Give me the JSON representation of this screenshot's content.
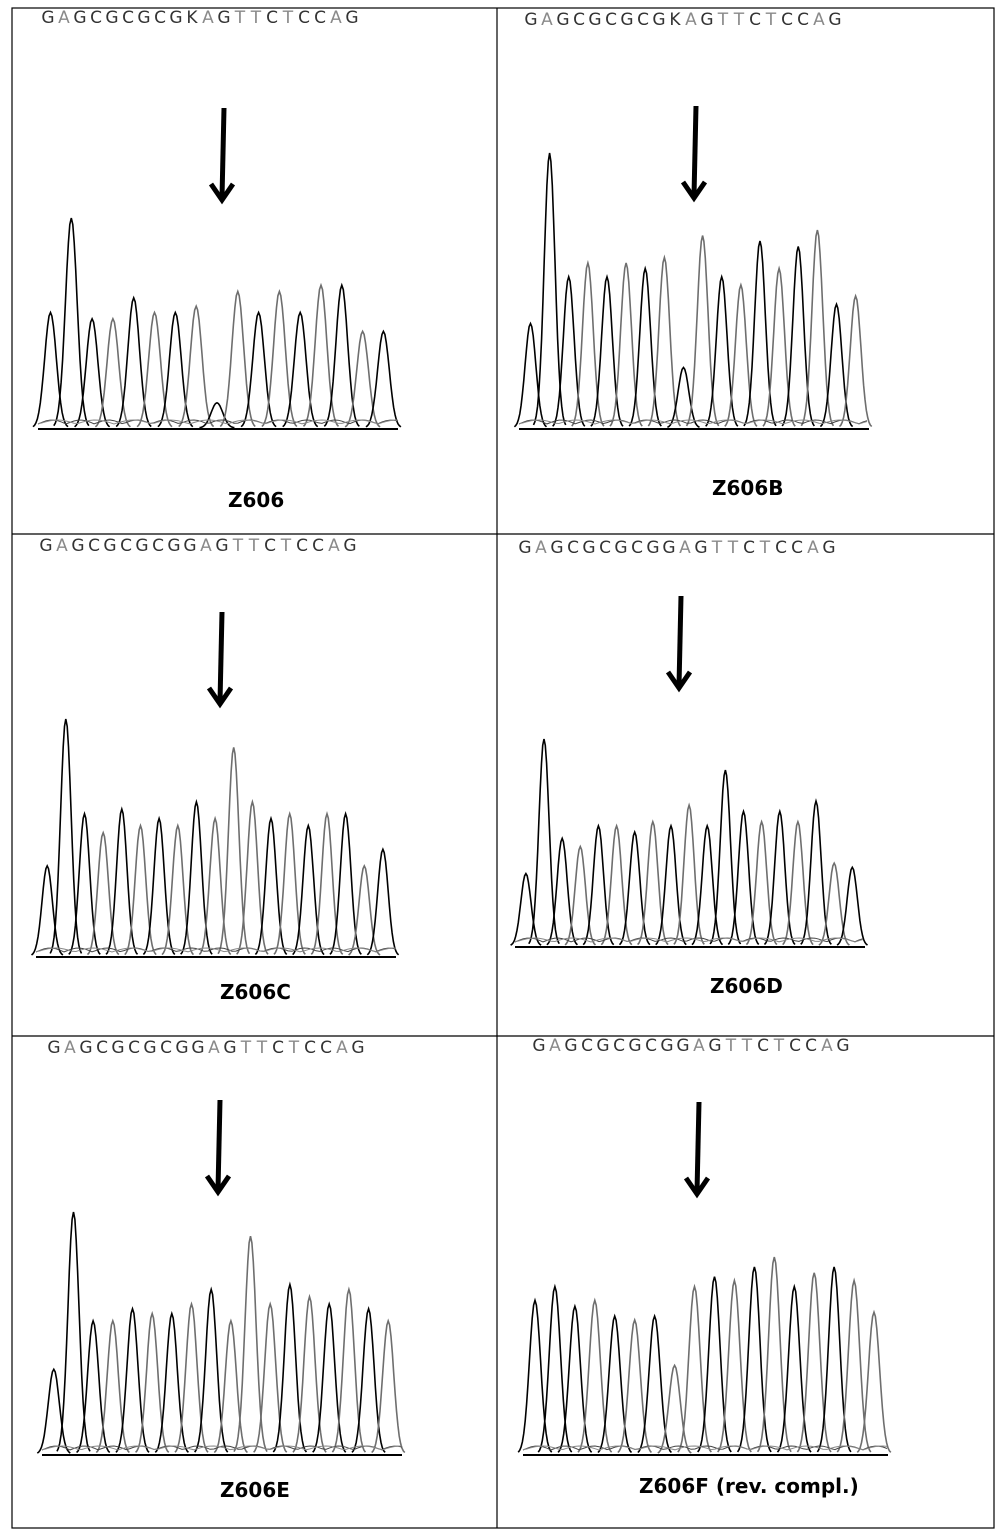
{
  "panels": [
    {
      "id": "z606",
      "label": "Z606",
      "sequence": "GAGCGCGCGKAGTTCTCCAG",
      "arrow_index": 9,
      "peaks": [
        0.55,
        1.0,
        0.52,
        0.52,
        0.62,
        0.55,
        0.55,
        0.58,
        0.12,
        0.65,
        0.55,
        0.65,
        0.55,
        0.68,
        0.68,
        0.46,
        0.46
      ]
    },
    {
      "id": "z606b",
      "label": "Z606B",
      "sequence": "GAGCGCGCGKAGTTCTCCAG",
      "arrow_index": 9,
      "peaks": [
        0.38,
        1.0,
        0.55,
        0.6,
        0.55,
        0.6,
        0.58,
        0.62,
        0.22,
        0.7,
        0.55,
        0.52,
        0.68,
        0.58,
        0.66,
        0.72,
        0.45,
        0.48
      ]
    },
    {
      "id": "z606c",
      "label": "Z606C",
      "sequence": "GAGCGCGCGGAGTTCTCCAG",
      "arrow_index": 9,
      "peaks": [
        0.38,
        1.0,
        0.6,
        0.52,
        0.62,
        0.55,
        0.58,
        0.55,
        0.65,
        0.58,
        0.88,
        0.65,
        0.58,
        0.6,
        0.55,
        0.6,
        0.6,
        0.38,
        0.45
      ]
    },
    {
      "id": "z606d",
      "label": "Z606D",
      "sequence": "GAGCGCGCGGAGTTCTCCAG",
      "arrow_index": 9,
      "peaks": [
        0.35,
        1.0,
        0.52,
        0.48,
        0.58,
        0.58,
        0.55,
        0.6,
        0.58,
        0.68,
        0.58,
        0.85,
        0.65,
        0.6,
        0.65,
        0.6,
        0.7,
        0.4,
        0.38
      ]
    },
    {
      "id": "z606e",
      "label": "Z606E",
      "sequence": "GAGCGCGCGGAGTTCTCCAG",
      "arrow_index": 9,
      "peaks": [
        0.35,
        1.0,
        0.55,
        0.55,
        0.6,
        0.58,
        0.58,
        0.62,
        0.68,
        0.55,
        0.9,
        0.62,
        0.7,
        0.65,
        0.62,
        0.68,
        0.6,
        0.55
      ]
    },
    {
      "id": "z606f",
      "label": "Z606F (rev. compl.)",
      "sequence": "GAGCGCGCGGAGTTCTCCAG",
      "arrow_index": 9,
      "peaks": [
        0.78,
        0.85,
        0.75,
        0.78,
        0.7,
        0.68,
        0.7,
        0.45,
        0.85,
        0.9,
        0.88,
        0.95,
        1.0,
        0.85,
        0.92,
        0.95,
        0.88,
        0.72
      ]
    }
  ]
}
